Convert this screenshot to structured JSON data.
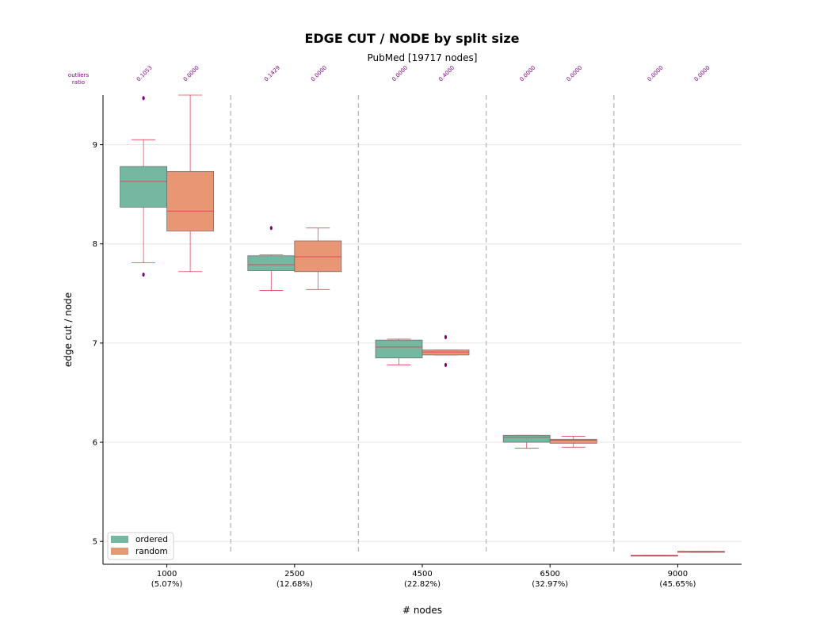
{
  "chart_data": {
    "type": "box",
    "title": "EDGE CUT / NODE by split size",
    "subtitle": "PubMed [19717 nodes]",
    "xlabel": "# nodes",
    "ylabel": "edge cut / node",
    "ylim": [
      4.77,
      9.5
    ],
    "yticks": [
      "5",
      "6",
      "7",
      "8",
      "9"
    ],
    "outliers_label": [
      "outliers",
      "ratio"
    ],
    "categories": [
      {
        "label": "1000",
        "sublabel": "(5.07%)"
      },
      {
        "label": "2500",
        "sublabel": "(12.68%)"
      },
      {
        "label": "4500",
        "sublabel": "(22.82%)"
      },
      {
        "label": "6500",
        "sublabel": "(32.97%)"
      },
      {
        "label": "9000",
        "sublabel": "(45.65%)"
      }
    ],
    "series": [
      {
        "name": "ordered",
        "color": "#74b8a2",
        "boxes": [
          {
            "whislo": 7.81,
            "q1": 8.37,
            "med": 8.63,
            "q3": 8.78,
            "whishi": 9.05,
            "fliers": [
              7.69,
              9.47
            ],
            "ratio": "0.1053"
          },
          {
            "whislo": 7.53,
            "q1": 7.73,
            "med": 7.79,
            "q3": 7.88,
            "whishi": 7.89,
            "fliers": [
              8.16
            ],
            "ratio": "0.1429"
          },
          {
            "whislo": 6.78,
            "q1": 6.85,
            "med": 6.96,
            "q3": 7.03,
            "whishi": 7.04,
            "fliers": [],
            "ratio": "0.0000"
          },
          {
            "whislo": 5.94,
            "q1": 6.0,
            "med": 6.05,
            "q3": 6.07,
            "whishi": 6.07,
            "fliers": [],
            "ratio": "0.0000"
          },
          {
            "whislo": 4.86,
            "q1": 4.86,
            "med": 4.86,
            "q3": 4.86,
            "whishi": 4.86,
            "fliers": [],
            "ratio": "0.0000"
          }
        ]
      },
      {
        "name": "random",
        "color": "#e99674",
        "boxes": [
          {
            "whislo": 7.72,
            "q1": 8.13,
            "med": 8.33,
            "q3": 8.73,
            "whishi": 9.5,
            "fliers": [],
            "ratio": "0.0000"
          },
          {
            "whislo": 7.54,
            "q1": 7.72,
            "med": 7.87,
            "q3": 8.03,
            "whishi": 8.16,
            "fliers": [],
            "ratio": "0.0000"
          },
          {
            "whislo": 6.88,
            "q1": 6.88,
            "med": 6.91,
            "q3": 6.93,
            "whishi": 6.93,
            "fliers": [
              6.78,
              7.06
            ],
            "ratio": "0.4000"
          },
          {
            "whislo": 5.95,
            "q1": 5.99,
            "med": 6.02,
            "q3": 6.03,
            "whishi": 6.06,
            "fliers": [],
            "ratio": "0.0000"
          },
          {
            "whislo": 4.89,
            "q1": 4.89,
            "med": 4.9,
            "q3": 4.9,
            "whishi": 4.9,
            "fliers": [],
            "ratio": "0.0000"
          }
        ]
      }
    ],
    "grid": "horizontal",
    "legend_position": "lower-left"
  },
  "colors": {
    "line": "#e0495a",
    "flier": "#800080",
    "separator": "#b8b8b8",
    "grid": "#e6e6e6",
    "ratio_text": "#800080"
  }
}
